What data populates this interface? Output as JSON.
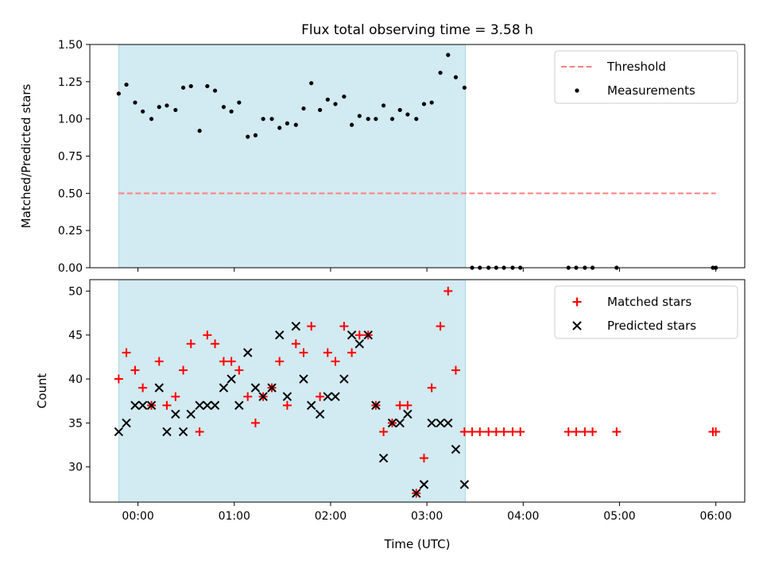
{
  "figure": {
    "title": "Flux total observing time = 3.58 h",
    "xlabel": "Time (UTC)",
    "xticks": [
      {
        "value": 0,
        "label": "00:00"
      },
      {
        "value": 1,
        "label": "01:00"
      },
      {
        "value": 2,
        "label": "02:00"
      },
      {
        "value": 3,
        "label": "03:00"
      },
      {
        "value": 4,
        "label": "04:00"
      },
      {
        "value": 5,
        "label": "05:00"
      },
      {
        "value": 6,
        "label": "06:00"
      }
    ],
    "shaded_span": {
      "start": -0.2,
      "end": 3.4,
      "color": "#add8e6"
    },
    "xlim": [
      -0.5,
      6.3
    ]
  },
  "chart_data": [
    {
      "type": "scatter",
      "panel": "top",
      "ylabel": "Matched/Predicted stars",
      "ylim": [
        0,
        1.5
      ],
      "yticks": [
        "0.00",
        "0.25",
        "0.50",
        "0.75",
        "1.00",
        "1.25",
        "1.50"
      ],
      "legend_position": "top-right",
      "threshold": {
        "name": "Threshold",
        "value": 0.5,
        "x_range": [
          -0.2,
          6.0
        ],
        "color": "#ff7f7f",
        "style": "dashed"
      },
      "series": [
        {
          "name": "Measurements",
          "color": "#000000",
          "marker": "dot",
          "x": [
            -0.2,
            -0.12,
            -0.03,
            0.05,
            0.14,
            0.22,
            0.3,
            0.39,
            0.47,
            0.55,
            0.64,
            0.72,
            0.8,
            0.89,
            0.97,
            1.05,
            1.14,
            1.22,
            1.3,
            1.39,
            1.47,
            1.55,
            1.64,
            1.72,
            1.8,
            1.89,
            1.97,
            2.05,
            2.14,
            2.22,
            2.3,
            2.39,
            2.47,
            2.55,
            2.64,
            2.72,
            2.8,
            2.89,
            2.97,
            3.05,
            3.14,
            3.22,
            3.3,
            3.39,
            3.47,
            3.55,
            3.64,
            3.72,
            3.8,
            3.89,
            3.97,
            4.47,
            4.55,
            4.64,
            4.72,
            4.97,
            5.97,
            6.0
          ],
          "y": [
            1.17,
            1.23,
            1.11,
            1.05,
            1.0,
            1.08,
            1.09,
            1.06,
            1.21,
            1.22,
            0.92,
            1.22,
            1.19,
            1.08,
            1.05,
            1.11,
            0.88,
            0.89,
            1.0,
            1.0,
            0.94,
            0.97,
            0.96,
            1.07,
            1.24,
            1.06,
            1.13,
            1.1,
            1.15,
            0.96,
            1.02,
            1.0,
            1.0,
            1.09,
            1.0,
            1.06,
            1.03,
            1.0,
            1.1,
            1.11,
            1.31,
            1.43,
            1.28,
            1.21,
            0,
            0,
            0,
            0,
            0,
            0,
            0,
            0,
            0,
            0,
            0,
            0,
            0,
            0
          ]
        }
      ]
    },
    {
      "type": "scatter",
      "panel": "bottom",
      "ylabel": "Count",
      "ylim": [
        26,
        51.3
      ],
      "yticks": [
        "30",
        "35",
        "40",
        "45",
        "50"
      ],
      "legend_position": "top-right",
      "series": [
        {
          "name": "Matched stars",
          "color": "#ff0000",
          "marker": "plus",
          "x": [
            -0.2,
            -0.12,
            -0.03,
            0.05,
            0.14,
            0.22,
            0.3,
            0.39,
            0.47,
            0.55,
            0.64,
            0.72,
            0.8,
            0.89,
            0.97,
            1.05,
            1.14,
            1.22,
            1.3,
            1.39,
            1.47,
            1.55,
            1.64,
            1.72,
            1.8,
            1.89,
            1.97,
            2.05,
            2.14,
            2.22,
            2.3,
            2.39,
            2.47,
            2.55,
            2.64,
            2.72,
            2.8,
            2.89,
            2.97,
            3.05,
            3.14,
            3.22,
            3.3,
            3.39,
            3.47,
            3.55,
            3.64,
            3.72,
            3.8,
            3.89,
            3.97,
            4.47,
            4.55,
            4.64,
            4.72,
            4.97,
            5.97,
            6.0
          ],
          "y": [
            40,
            43,
            41,
            39,
            37,
            42,
            37,
            38,
            41,
            44,
            34,
            45,
            44,
            42,
            42,
            41,
            38,
            35,
            38,
            39,
            42,
            37,
            44,
            43,
            46,
            38,
            43,
            42,
            46,
            43,
            45,
            45,
            37,
            34,
            35,
            37,
            37,
            27,
            31,
            39,
            46,
            50,
            41,
            34,
            34,
            34,
            34,
            34,
            34,
            34,
            34,
            34,
            34,
            34,
            34,
            34,
            34,
            34
          ]
        },
        {
          "name": "Predicted stars",
          "color": "#000000",
          "marker": "x",
          "x": [
            -0.2,
            -0.12,
            -0.03,
            0.05,
            0.14,
            0.22,
            0.3,
            0.39,
            0.47,
            0.55,
            0.64,
            0.72,
            0.8,
            0.89,
            0.97,
            1.05,
            1.14,
            1.22,
            1.3,
            1.39,
            1.47,
            1.55,
            1.64,
            1.72,
            1.8,
            1.89,
            1.97,
            2.05,
            2.14,
            2.22,
            2.3,
            2.39,
            2.47,
            2.55,
            2.64,
            2.72,
            2.8,
            2.89,
            2.97,
            3.05,
            3.14,
            3.22,
            3.3,
            3.39
          ],
          "y": [
            34,
            35,
            37,
            37,
            37,
            39,
            34,
            36,
            34,
            36,
            37,
            37,
            37,
            39,
            40,
            37,
            43,
            39,
            38,
            39,
            45,
            38,
            46,
            40,
            37,
            36,
            38,
            38,
            40,
            45,
            44,
            45,
            37,
            31,
            35,
            35,
            36,
            27,
            28,
            35,
            35,
            35,
            32,
            28
          ]
        }
      ]
    }
  ]
}
